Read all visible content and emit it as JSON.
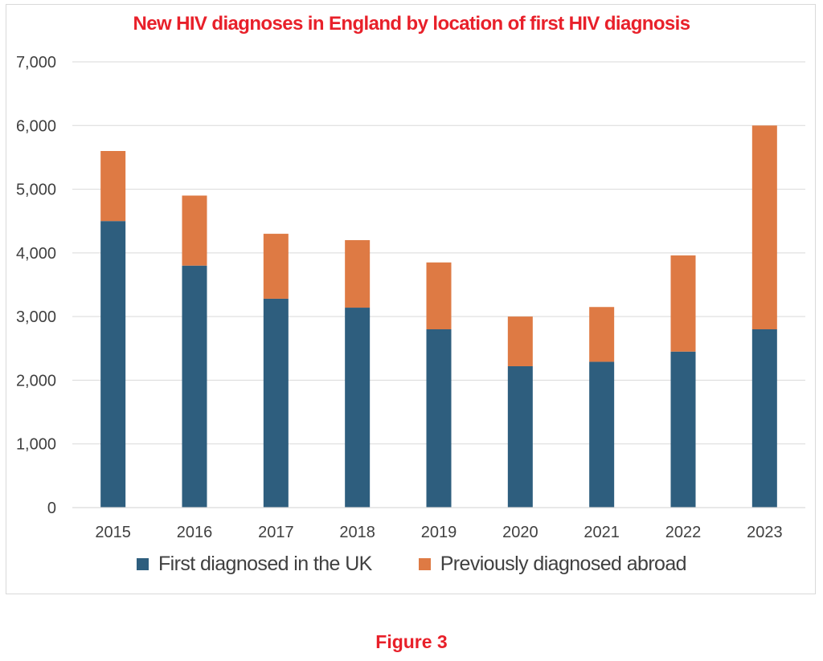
{
  "chart_data": {
    "type": "bar",
    "stacked": true,
    "title": "New HIV diagnoses in England by location of first HIV diagnosis",
    "categories": [
      "2015",
      "2016",
      "2017",
      "2018",
      "2019",
      "2020",
      "2021",
      "2022",
      "2023"
    ],
    "series": [
      {
        "name": "First diagnosed in the UK",
        "color": "#2e5e7e",
        "values": [
          4500,
          3800,
          3280,
          3140,
          2800,
          2220,
          2290,
          2450,
          2800
        ]
      },
      {
        "name": "Previously diagnosed abroad",
        "color": "#de7a44",
        "values": [
          1100,
          1100,
          1020,
          1060,
          1050,
          780,
          860,
          1510,
          3200
        ]
      }
    ],
    "ylim": [
      0,
      7000
    ],
    "yticks": [
      0,
      1000,
      2000,
      3000,
      4000,
      5000,
      6000,
      7000
    ],
    "ytick_labels": [
      "0",
      "1,000",
      "2,000",
      "3,000",
      "4,000",
      "5,000",
      "6,000",
      "7,000"
    ],
    "xlabel": "",
    "ylabel": "",
    "grid": true,
    "legend_position": "bottom"
  },
  "caption": "Figure 3"
}
